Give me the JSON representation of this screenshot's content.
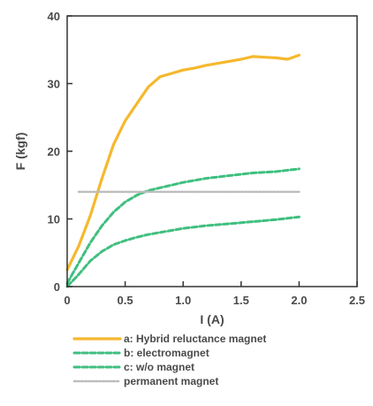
{
  "chart_data": {
    "type": "line",
    "xlabel": "I (A)",
    "ylabel": "F (kgf)",
    "xlim": [
      0,
      2.5
    ],
    "ylim": [
      0,
      40
    ],
    "xticks": [
      0,
      0.5,
      1.0,
      1.5,
      2.0,
      2.5
    ],
    "xtick_labels": [
      "0",
      "0.5",
      "1.0",
      "1.5",
      "2.0",
      "2.5"
    ],
    "yticks": [
      0,
      10,
      20,
      30,
      40
    ],
    "ytick_labels": [
      "0",
      "10",
      "20",
      "30",
      "40"
    ],
    "grid": false,
    "legend_position": "below",
    "series": [
      {
        "name": "a: Hybrid reluctance magnet",
        "color": "#f5b82e",
        "style": "solid",
        "x": [
          0,
          0.1,
          0.2,
          0.3,
          0.4,
          0.5,
          0.6,
          0.7,
          0.8,
          0.9,
          1.0,
          1.1,
          1.2,
          1.3,
          1.4,
          1.5,
          1.6,
          1.7,
          1.8,
          1.9,
          2.0
        ],
        "y": [
          2.5,
          6,
          10.5,
          16,
          21,
          24.5,
          27,
          29.5,
          31,
          31.5,
          32,
          32.3,
          32.7,
          33,
          33.3,
          33.6,
          34,
          33.9,
          33.8,
          33.6,
          34.2
        ]
      },
      {
        "name": "b: electromagnet",
        "color": "#3fbf7f",
        "style": "dashed",
        "x": [
          0,
          0.1,
          0.2,
          0.3,
          0.4,
          0.5,
          0.6,
          0.7,
          0.8,
          0.9,
          1.0,
          1.2,
          1.4,
          1.6,
          1.8,
          2.0
        ],
        "y": [
          0.5,
          3.5,
          6.5,
          9,
          11,
          12.5,
          13.5,
          14.2,
          14.6,
          15,
          15.4,
          16,
          16.4,
          16.8,
          17,
          17.4
        ]
      },
      {
        "name": "c: w/o magnet",
        "color": "#3fbf7f",
        "style": "dashed",
        "x": [
          0,
          0.1,
          0.2,
          0.3,
          0.4,
          0.5,
          0.6,
          0.7,
          0.8,
          0.9,
          1.0,
          1.2,
          1.4,
          1.6,
          1.8,
          2.0
        ],
        "y": [
          0,
          1.8,
          3.8,
          5.2,
          6.2,
          6.8,
          7.3,
          7.7,
          8.0,
          8.3,
          8.6,
          9.0,
          9.3,
          9.6,
          9.9,
          10.3
        ]
      },
      {
        "name": "permanent magnet",
        "color": "#bdbdbd",
        "style": "dotted",
        "x": [
          0.1,
          2.0
        ],
        "y": [
          14,
          14
        ]
      }
    ]
  }
}
